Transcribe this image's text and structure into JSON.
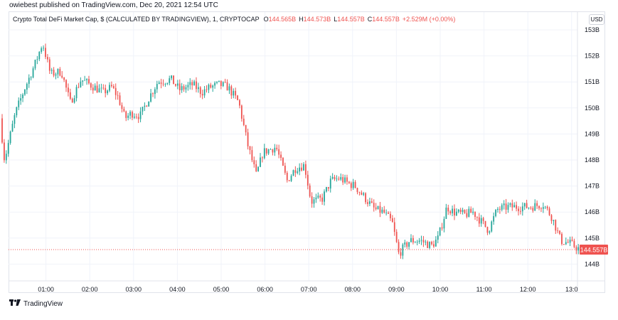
{
  "header": {
    "published": "owiebest published on TradingView.com, Dec 20, 2021 12:54 UTC"
  },
  "legend": {
    "title": "Crypto Total DeFi Market Cap, $ (CALCULATED BY TRADINGVIEW), 1, CRYPTOCAP",
    "o_label": "O",
    "o_value": "144.565B",
    "h_label": "H",
    "h_value": "144.573B",
    "l_label": "L",
    "l_value": "144.557B",
    "c_label": "C",
    "c_value": "144.557B",
    "change": "+2.529M (+0.00%)"
  },
  "currency_button": "USD",
  "last_price_label": "144.557B",
  "brand": {
    "name": "TradingView",
    "logo_icon": "tradingview-logo-icon"
  },
  "colors": {
    "up": "#26a69a",
    "down": "#ef5350",
    "grid": "#f0f3fa",
    "price_line": "#ef5350"
  },
  "chart_data": {
    "type": "candlestick",
    "y_unit": "B",
    "y_ticks": [
      144,
      145,
      146,
      147,
      148,
      149,
      150,
      151,
      152,
      153
    ],
    "y_tick_labels": [
      "144B",
      "145B",
      "146B",
      "147B",
      "148B",
      "149B",
      "150B",
      "151B",
      "152B",
      "153B"
    ],
    "ylim": [
      143.3,
      153.3
    ],
    "x_ticks": [
      "01:00",
      "02:00",
      "03:00",
      "04:00",
      "05:00",
      "06:00",
      "07:00",
      "08:00",
      "09:00",
      "10:00",
      "11:00",
      "12:00",
      "13:0"
    ],
    "last_price": 144.557,
    "grid": true,
    "keyframes": [
      [
        0.0,
        149.6
      ],
      [
        0.1,
        148.0
      ],
      [
        0.35,
        149.8
      ],
      [
        0.55,
        150.7
      ],
      [
        0.8,
        151.7
      ],
      [
        0.97,
        152.5
      ],
      [
        1.15,
        151.3
      ],
      [
        1.4,
        151.4
      ],
      [
        1.6,
        150.2
      ],
      [
        1.85,
        151.1
      ],
      [
        2.05,
        150.9
      ],
      [
        2.35,
        150.6
      ],
      [
        2.55,
        150.8
      ],
      [
        2.7,
        150.4
      ],
      [
        2.85,
        149.6
      ],
      [
        3.0,
        149.8
      ],
      [
        3.2,
        149.7
      ],
      [
        3.4,
        150.4
      ],
      [
        3.6,
        151.0
      ],
      [
        3.9,
        151.1
      ],
      [
        4.1,
        150.7
      ],
      [
        4.4,
        150.9
      ],
      [
        4.6,
        150.6
      ],
      [
        4.8,
        150.8
      ],
      [
        5.0,
        150.9
      ],
      [
        5.2,
        150.8
      ],
      [
        5.45,
        150.2
      ],
      [
        5.65,
        148.6
      ],
      [
        5.85,
        147.4
      ],
      [
        6.0,
        148.3
      ],
      [
        6.3,
        148.5
      ],
      [
        6.55,
        147.2
      ],
      [
        6.75,
        147.7
      ],
      [
        6.95,
        147.8
      ],
      [
        7.1,
        146.4
      ],
      [
        7.35,
        146.5
      ],
      [
        7.55,
        147.2
      ],
      [
        7.75,
        147.3
      ],
      [
        7.95,
        147.1
      ],
      [
        8.1,
        147.0
      ],
      [
        8.35,
        146.5
      ],
      [
        8.55,
        146.1
      ],
      [
        8.75,
        146.0
      ],
      [
        8.95,
        145.6
      ],
      [
        9.1,
        144.4
      ],
      [
        9.35,
        144.9
      ],
      [
        9.6,
        144.9
      ],
      [
        9.85,
        144.7
      ],
      [
        10.0,
        145.0
      ],
      [
        10.2,
        146.2
      ],
      [
        10.35,
        146.0
      ],
      [
        10.6,
        145.9
      ],
      [
        10.8,
        146.0
      ],
      [
        11.0,
        145.6
      ],
      [
        11.15,
        145.3
      ],
      [
        11.35,
        146.1
      ],
      [
        11.6,
        146.2
      ],
      [
        11.85,
        146.2
      ],
      [
        12.1,
        146.2
      ],
      [
        12.4,
        146.3
      ],
      [
        12.6,
        145.8
      ],
      [
        12.8,
        144.9
      ],
      [
        13.0,
        144.8
      ],
      [
        13.2,
        144.6
      ]
    ],
    "candle_count": 280
  }
}
